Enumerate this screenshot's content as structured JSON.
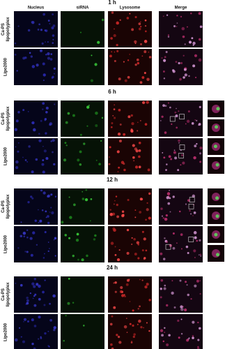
{
  "columns": [
    "Nucleus",
    "siRNA",
    "Lysosome",
    "Merge"
  ],
  "sections": [
    {
      "time": "1 h",
      "rows": [
        {
          "label": [
            "Ca-PS",
            "lipopolyplex"
          ]
        },
        {
          "label": [
            "Lipo2000"
          ]
        }
      ]
    },
    {
      "time": "6 h",
      "rows": [
        {
          "label": [
            "Ca-PS",
            "lipopolyplex"
          ]
        },
        {
          "label": [
            "Lipo2000"
          ]
        }
      ]
    },
    {
      "time": "12 h",
      "rows": [
        {
          "label": [
            "Ca-PS",
            "lipopolyplex"
          ]
        },
        {
          "label": [
            "Lipo2000"
          ]
        }
      ]
    },
    {
      "time": "24 h",
      "rows": [
        {
          "label": [
            "Ca-PS",
            "lipopolyplex"
          ]
        },
        {
          "label": [
            "Lipo2000"
          ]
        }
      ]
    }
  ]
}
